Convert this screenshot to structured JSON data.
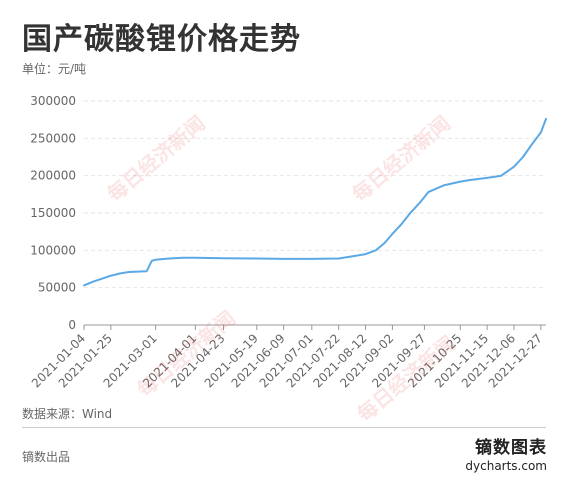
{
  "title": "国产碳酸锂价格走势",
  "unit_label": "单位：元/吨",
  "source_label": "数据来源：Wind",
  "producer_label": "镝数出品",
  "brand": {
    "name": "镝数图表",
    "url": "dycharts.com"
  },
  "watermark_text": "每日经济新闻",
  "colors": {
    "line": "#5aa9e6",
    "grid": "#e6e6e6",
    "axis_text": "#666666",
    "watermark": "#e14b4b"
  },
  "chart_data": {
    "type": "line",
    "title": "国产碳酸锂价格走势",
    "xlabel": "",
    "ylabel": "单位：元/吨",
    "ylim": [
      0,
      300000
    ],
    "yticks": [
      0,
      50000,
      100000,
      150000,
      200000,
      250000,
      300000
    ],
    "ytick_labels": [
      "0",
      "50000",
      "100000",
      "150000",
      "200000",
      "250000",
      "300000"
    ],
    "xticks": [
      "2021-01-04",
      "2021-01-25",
      "2021-03-01",
      "2021-04-01",
      "2021-04-23",
      "2021-05-19",
      "2021-06-09",
      "2021-07-01",
      "2021-07-22",
      "2021-08-12",
      "2021-09-02",
      "2021-09-27",
      "2021-10-25",
      "2021-11-15",
      "2021-12-06",
      "2021-12-27"
    ],
    "grid": true,
    "series": [
      {
        "values": [
          [
            "2021-01-04",
            53000
          ],
          [
            "2021-01-11",
            58000
          ],
          [
            "2021-01-18",
            62000
          ],
          [
            "2021-01-25",
            66000
          ],
          [
            "2021-02-01",
            69000
          ],
          [
            "2021-02-08",
            71000
          ],
          [
            "2021-02-22",
            72000
          ],
          [
            "2021-02-26",
            86000
          ],
          [
            "2021-03-01",
            87500
          ],
          [
            "2021-03-08",
            88500
          ],
          [
            "2021-03-15",
            89500
          ],
          [
            "2021-03-22",
            90000
          ],
          [
            "2021-04-01",
            90000
          ],
          [
            "2021-04-23",
            89500
          ],
          [
            "2021-05-19",
            89000
          ],
          [
            "2021-06-09",
            88500
          ],
          [
            "2021-07-01",
            88500
          ],
          [
            "2021-07-22",
            89000
          ],
          [
            "2021-08-02",
            92000
          ],
          [
            "2021-08-12",
            95000
          ],
          [
            "2021-08-20",
            100000
          ],
          [
            "2021-08-27",
            110000
          ],
          [
            "2021-09-02",
            122000
          ],
          [
            "2021-09-09",
            135000
          ],
          [
            "2021-09-16",
            150000
          ],
          [
            "2021-09-24",
            165000
          ],
          [
            "2021-09-30",
            178000
          ],
          [
            "2021-10-12",
            187000
          ],
          [
            "2021-10-25",
            192000
          ],
          [
            "2021-11-01",
            194000
          ],
          [
            "2021-11-15",
            197000
          ],
          [
            "2021-11-26",
            200000
          ],
          [
            "2021-12-06",
            212000
          ],
          [
            "2021-12-13",
            225000
          ],
          [
            "2021-12-20",
            242000
          ],
          [
            "2021-12-27",
            258000
          ],
          [
            "2021-12-31",
            276000
          ]
        ]
      }
    ]
  }
}
